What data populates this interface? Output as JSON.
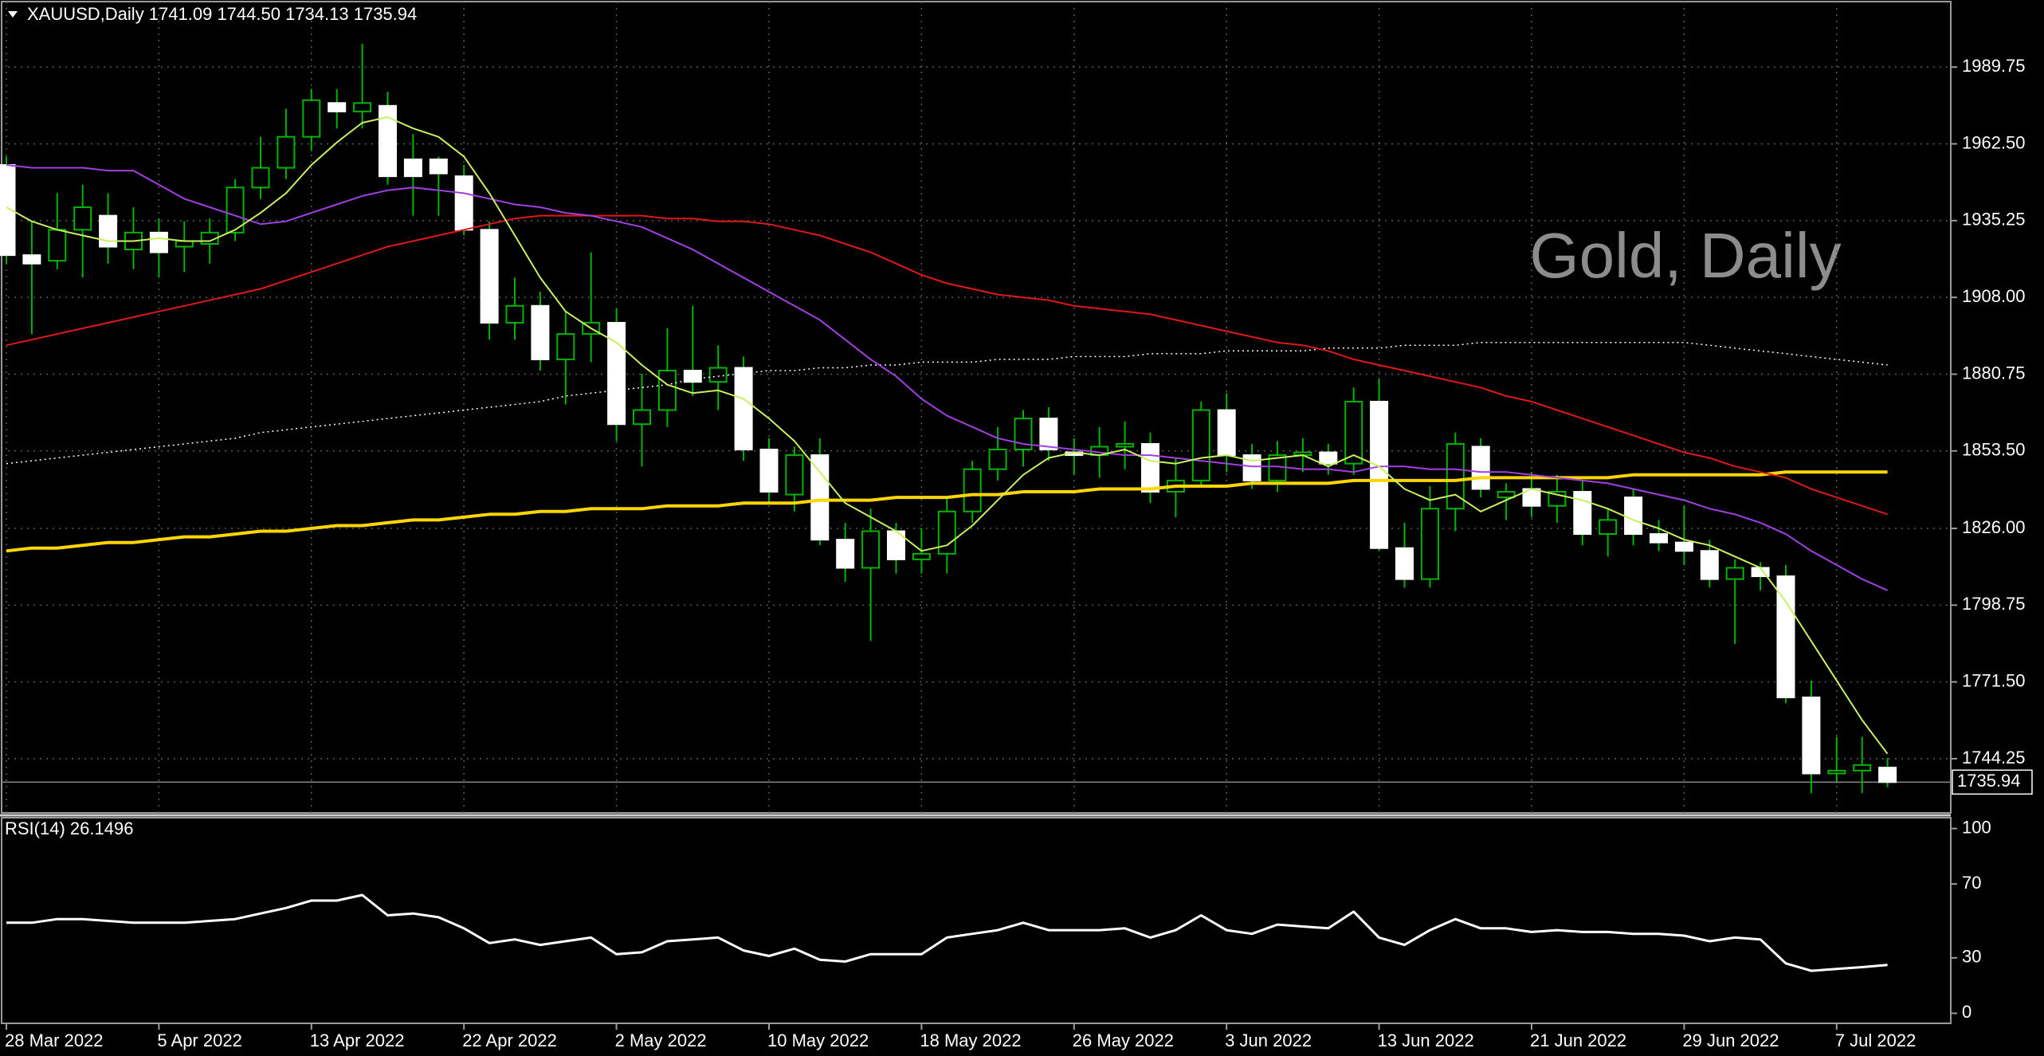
{
  "chart_data": [
    {
      "type": "candlestick",
      "title": "XAUUSD,Daily  1741.09 1744.50 1734.13 1735.94",
      "watermark": "Gold, Daily",
      "categories": [
        "28 Mar 2022",
        null,
        null,
        null,
        null,
        null,
        "5 Apr 2022",
        null,
        null,
        null,
        null,
        null,
        "13 Apr 2022",
        null,
        null,
        null,
        null,
        null,
        "22 Apr 2022",
        null,
        null,
        null,
        null,
        null,
        "2 May 2022",
        null,
        null,
        null,
        null,
        null,
        "10 May 2022",
        null,
        null,
        null,
        null,
        null,
        "18 May 2022",
        null,
        null,
        null,
        null,
        null,
        "26 May 2022",
        null,
        null,
        null,
        null,
        null,
        "3 Jun 2022",
        null,
        null,
        null,
        null,
        null,
        "13 Jun 2022",
        null,
        null,
        null,
        null,
        null,
        "21 Jun 2022",
        null,
        null,
        null,
        null,
        null,
        "29 Jun 2022",
        null,
        null,
        null,
        null,
        null,
        "7 Jul 2022",
        null,
        null
      ],
      "open": [
        1955,
        1923,
        1921,
        1932,
        1937,
        1925,
        1931,
        1926,
        1927,
        1931,
        1947,
        1954,
        1965,
        1977,
        1974,
        1976,
        1957,
        1957,
        1951,
        1932,
        1899,
        1905,
        1886,
        1895,
        1899,
        1863,
        1868,
        1882,
        1878,
        1883,
        1854,
        1838,
        1852,
        1822,
        1812,
        1825,
        1815,
        1817,
        1832,
        1847,
        1854,
        1865,
        1853,
        1852,
        1855,
        1856,
        1839,
        1843,
        1868,
        1852,
        1843,
        1852,
        1853,
        1849,
        1871,
        1819,
        1808,
        1833,
        1855,
        1837,
        1840,
        1834,
        1839,
        1824,
        1837,
        1824,
        1821,
        1818,
        1808,
        1812,
        1809,
        1766,
        1739,
        1740,
        1741.09
      ],
      "high": [
        1958,
        1935,
        1945,
        1948,
        1945,
        1940,
        1936,
        1935,
        1936,
        1950,
        1965,
        1975,
        1982,
        1982,
        1998,
        1981,
        1966,
        1958,
        1955,
        1935,
        1915,
        1910,
        1903,
        1924,
        1904,
        1881,
        1897,
        1905,
        1891,
        1887,
        1858,
        1855,
        1858,
        1828,
        1833,
        1828,
        1826,
        1837,
        1850,
        1862,
        1868,
        1869,
        1858,
        1862,
        1864,
        1860,
        1851,
        1871,
        1874,
        1856,
        1857,
        1858,
        1856,
        1876,
        1879,
        1828,
        1841,
        1860,
        1858,
        1842,
        1846,
        1845,
        1843,
        1833,
        1840,
        1829,
        1834,
        1822,
        1815,
        1814,
        1813,
        1772,
        1752,
        1752,
        1744.5
      ],
      "low": [
        1920,
        1895,
        1918,
        1915,
        1920,
        1918,
        1915,
        1917,
        1920,
        1928,
        1943,
        1950,
        1960,
        1968,
        1968,
        1948,
        1937,
        1937,
        1930,
        1893,
        1893,
        1882,
        1870,
        1885,
        1857,
        1848,
        1862,
        1873,
        1868,
        1850,
        1835,
        1832,
        1820,
        1807,
        1786,
        1810,
        1810,
        1810,
        1828,
        1843,
        1848,
        1850,
        1845,
        1844,
        1847,
        1835,
        1830,
        1841,
        1846,
        1840,
        1839,
        1846,
        1845,
        1845,
        1818,
        1805,
        1805,
        1825,
        1837,
        1829,
        1830,
        1828,
        1820,
        1816,
        1820,
        1818,
        1813,
        1805,
        1785,
        1804,
        1764,
        1732,
        1736,
        1732,
        1734.13
      ],
      "close": [
        1923,
        1920,
        1932,
        1940,
        1926,
        1931,
        1924,
        1928,
        1931,
        1947,
        1954,
        1965,
        1978,
        1974,
        1977,
        1951,
        1951,
        1952,
        1932,
        1899,
        1905,
        1886,
        1895,
        1899,
        1863,
        1868,
        1882,
        1878,
        1883,
        1854,
        1839,
        1852,
        1822,
        1812,
        1825,
        1815,
        1817,
        1832,
        1847,
        1854,
        1865,
        1854,
        1852,
        1855,
        1856,
        1839,
        1843,
        1868,
        1852,
        1843,
        1852,
        1853,
        1849,
        1871,
        1819,
        1808,
        1833,
        1856,
        1840,
        1839,
        1834,
        1839,
        1824,
        1829,
        1824,
        1821,
        1818,
        1808,
        1812,
        1809,
        1766,
        1739,
        1740,
        1742,
        1735.94
      ],
      "up_color": "#000000",
      "down_color": "#ffffff",
      "wick_color": "#00b400",
      "series": [
        {
          "color": "#ffffff",
          "line_style": "dotted",
          "values": [
            1849,
            1850,
            1851,
            1852,
            1853,
            1854,
            1855,
            1856,
            1857,
            1858,
            1860,
            1861,
            1862,
            1863,
            1864,
            1865,
            1866,
            1867,
            1868,
            1869,
            1870,
            1871,
            1873,
            1874,
            1875,
            1876,
            1877,
            1879,
            1880,
            1881,
            1882,
            1882,
            1883,
            1883,
            1884,
            1884,
            1885,
            1885,
            1885,
            1886,
            1886,
            1886,
            1887,
            1887,
            1887,
            1888,
            1888,
            1888,
            1889,
            1889,
            1889,
            1889,
            1890,
            1890,
            1890,
            1891,
            1891,
            1891,
            1892,
            1892,
            1892,
            1892,
            1892,
            1892,
            1892,
            1892,
            1892,
            1891,
            1890,
            1889,
            1888,
            1887,
            1886,
            1885,
            1884
          ]
        },
        {
          "color": "#ffd700",
          "line_style": "thick",
          "values": [
            1818,
            1819,
            1819,
            1820,
            1821,
            1821,
            1822,
            1823,
            1823,
            1824,
            1825,
            1825,
            1826,
            1827,
            1827,
            1828,
            1829,
            1829,
            1830,
            1831,
            1831,
            1832,
            1832,
            1833,
            1833,
            1833,
            1834,
            1834,
            1834,
            1835,
            1835,
            1835,
            1836,
            1836,
            1836,
            1837,
            1837,
            1837,
            1838,
            1838,
            1839,
            1839,
            1839,
            1840,
            1840,
            1840,
            1841,
            1841,
            1841,
            1842,
            1842,
            1842,
            1842,
            1843,
            1843,
            1843,
            1843,
            1843,
            1844,
            1844,
            1844,
            1844,
            1844,
            1844,
            1845,
            1845,
            1845,
            1845,
            1845,
            1845,
            1846,
            1846,
            1846,
            1846,
            1846
          ]
        },
        {
          "color": "#e01818",
          "line_style": "solid",
          "values": [
            1891,
            1893,
            1895,
            1897,
            1899,
            1901,
            1903,
            1905,
            1907,
            1909,
            1911,
            1914,
            1917,
            1920,
            1923,
            1926,
            1928,
            1930,
            1932,
            1934,
            1936,
            1937,
            1937,
            1937,
            1937,
            1937,
            1936,
            1936,
            1935,
            1935,
            1934,
            1932,
            1930,
            1927,
            1924,
            1920,
            1916,
            1913,
            1911,
            1909,
            1908,
            1907,
            1905,
            1904,
            1903,
            1902,
            1900,
            1898,
            1896,
            1894,
            1892,
            1891,
            1889,
            1886,
            1884,
            1882,
            1880,
            1878,
            1876,
            1873,
            1871,
            1868,
            1865,
            1862,
            1859,
            1856,
            1853,
            1851,
            1848,
            1846,
            1844,
            1840,
            1837,
            1834,
            1831
          ]
        },
        {
          "color": "#a040e0",
          "line_style": "solid",
          "values": [
            1955,
            1954,
            1954,
            1954,
            1953,
            1953,
            1948,
            1943,
            1940,
            1937,
            1934,
            1935,
            1938,
            1941,
            1944,
            1946,
            1947,
            1946,
            1945,
            1943,
            1941,
            1940,
            1938,
            1937,
            1935,
            1933,
            1929,
            1925,
            1920,
            1915,
            1910,
            1905,
            1900,
            1893,
            1886,
            1880,
            1872,
            1866,
            1862,
            1858,
            1856,
            1855,
            1854,
            1853,
            1852,
            1852,
            1851,
            1850,
            1849,
            1848,
            1848,
            1847,
            1847,
            1846,
            1848,
            1848,
            1847,
            1847,
            1846,
            1846,
            1845,
            1844,
            1843,
            1842,
            1840,
            1838,
            1836,
            1833,
            1831,
            1828,
            1824,
            1818,
            1813,
            1808,
            1804
          ]
        },
        {
          "color": "#c8f060",
          "line_style": "solid",
          "values": [
            1940,
            1935,
            1932,
            1930,
            1928,
            1928,
            1929,
            1928,
            1928,
            1932,
            1938,
            1945,
            1955,
            1963,
            1970,
            1972,
            1968,
            1965,
            1958,
            1945,
            1930,
            1915,
            1903,
            1897,
            1892,
            1884,
            1877,
            1874,
            1875,
            1872,
            1865,
            1857,
            1846,
            1835,
            1830,
            1825,
            1818,
            1820,
            1827,
            1836,
            1845,
            1851,
            1853,
            1852,
            1854,
            1850,
            1849,
            1851,
            1852,
            1850,
            1851,
            1852,
            1848,
            1852,
            1848,
            1840,
            1836,
            1838,
            1832,
            1836,
            1840,
            1838,
            1836,
            1833,
            1829,
            1826,
            1822,
            1820,
            1816,
            1812,
            1800,
            1786,
            1772,
            1758,
            1746
          ]
        }
      ],
      "current_price": 1735.94,
      "ylim": [
        1725,
        2013
      ],
      "yticks": [
        1989.75,
        {
          "value": 1962.5,
          "label": "1962.50"
        },
        1935.25,
        {
          "value": 1908,
          "label": "1908.00"
        },
        1880.75,
        {
          "value": 1853.5,
          "label": "1853.50"
        },
        {
          "value": 1826,
          "label": "1826.00"
        },
        1798.75,
        {
          "value": 1771.5,
          "label": "1771.50"
        },
        1744.25
      ],
      "grid": true
    },
    {
      "type": "line",
      "title": "RSI(14) 26.1496",
      "color": "#ffffff",
      "values": [
        49,
        49,
        51,
        51,
        50,
        49,
        49,
        49,
        50,
        51,
        54,
        57,
        61,
        61,
        64,
        53,
        54,
        52,
        46,
        38,
        40,
        37,
        39,
        41,
        32,
        33,
        39,
        40,
        41,
        34,
        31,
        35,
        29,
        28,
        32,
        32,
        32,
        41,
        43,
        45,
        49,
        45,
        45,
        45,
        46,
        41,
        45,
        53,
        45,
        43,
        48,
        47,
        46,
        55,
        41,
        37,
        45,
        51,
        46,
        46,
        44,
        45,
        44,
        44,
        43,
        43,
        42,
        39,
        41,
        40,
        27,
        23,
        24,
        25,
        26.1496
      ],
      "ylim": [
        -5,
        105
      ],
      "yticks": [
        100,
        70,
        30,
        0
      ],
      "grid": false
    }
  ]
}
